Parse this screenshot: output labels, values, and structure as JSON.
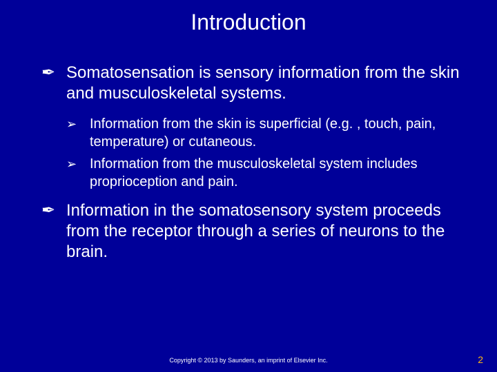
{
  "colors": {
    "background": "#000099",
    "text": "#ffffff",
    "page_number": "#fdb813"
  },
  "typography": {
    "title_fontsize": 32,
    "body_fontsize": 24,
    "sub_fontsize": 20,
    "footer_fontsize": 9,
    "pagenum_fontsize": 14,
    "font_family": "Arial"
  },
  "title": "Introduction",
  "bullets": [
    {
      "text": "Somatosensation is sensory information from the skin and musculoskeletal systems.",
      "subs": [
        "Information from the skin is superficial (e.g. , touch, pain, temperature) or cutaneous.",
        "Information from the musculoskeletal system includes proprioception and pain."
      ]
    },
    {
      "text": "Information in the somatosensory system proceeds from the receptor through a series of neurons to the brain.",
      "subs": []
    }
  ],
  "footer": "Copyright © 2013 by Saunders, an imprint of Elsevier Inc.",
  "page_number": "2",
  "bullet_glyphs": {
    "level1": "✒",
    "level2": "➢"
  }
}
